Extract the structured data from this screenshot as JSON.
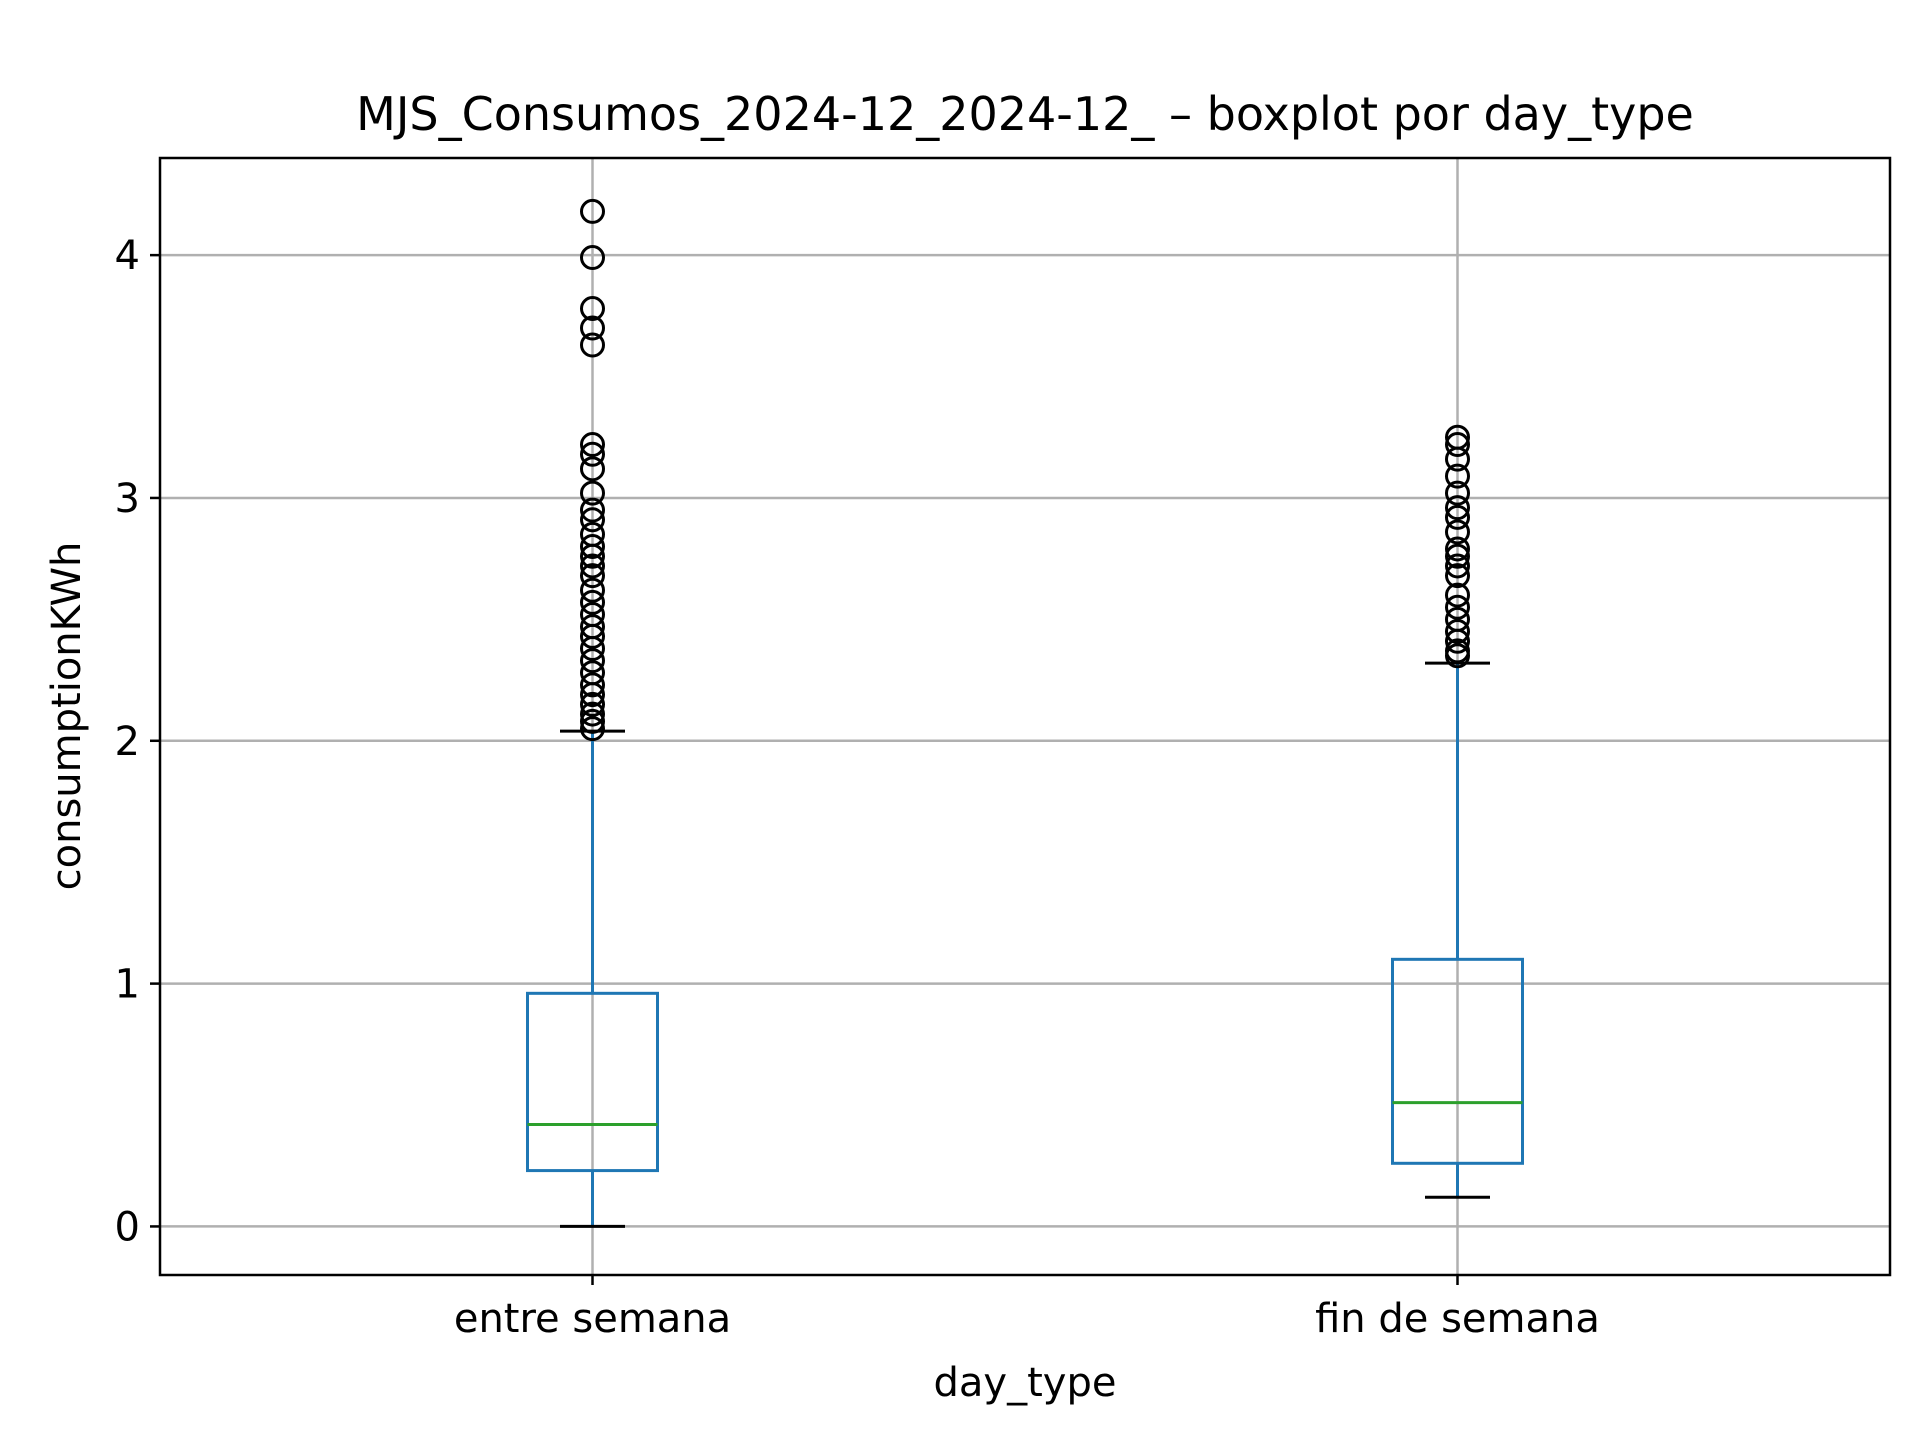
{
  "chart_data": {
    "type": "boxplot",
    "title": "MJS_Consumos_2024-12_2024-12_ – boxplot por day_type",
    "xlabel": "day_type",
    "ylabel": "consumptionKWh",
    "ylim": [
      -0.2,
      4.4
    ],
    "yticks": [
      0,
      1,
      2,
      3,
      4
    ],
    "grid": true,
    "categories": [
      "entre semana",
      "fin de semana"
    ],
    "colors": {
      "box": "#1f77b4",
      "median": "#2ca02c",
      "cap": "#000000",
      "flier": "#000000",
      "grid": "#b0b0b0"
    },
    "boxes": [
      {
        "category": "entre semana",
        "whisker_low": 0.0,
        "q1": 0.23,
        "median": 0.42,
        "q3": 0.96,
        "whisker_high": 2.04,
        "fliers": [
          4.18,
          3.99,
          3.78,
          3.7,
          3.63,
          3.22,
          3.18,
          3.12,
          3.02,
          2.95,
          2.91,
          2.85,
          2.8,
          2.76,
          2.72,
          2.68,
          2.62,
          2.57,
          2.52,
          2.47,
          2.43,
          2.38,
          2.33,
          2.28,
          2.23,
          2.19,
          2.15,
          2.11,
          2.08,
          2.05
        ]
      },
      {
        "category": "fin de semana",
        "whisker_low": 0.12,
        "q1": 0.26,
        "median": 0.51,
        "q3": 1.1,
        "whisker_high": 2.32,
        "fliers": [
          3.25,
          3.22,
          3.16,
          3.09,
          3.02,
          2.96,
          2.92,
          2.86,
          2.79,
          2.76,
          2.72,
          2.68,
          2.6,
          2.55,
          2.5,
          2.45,
          2.41,
          2.37,
          2.35
        ]
      }
    ]
  }
}
